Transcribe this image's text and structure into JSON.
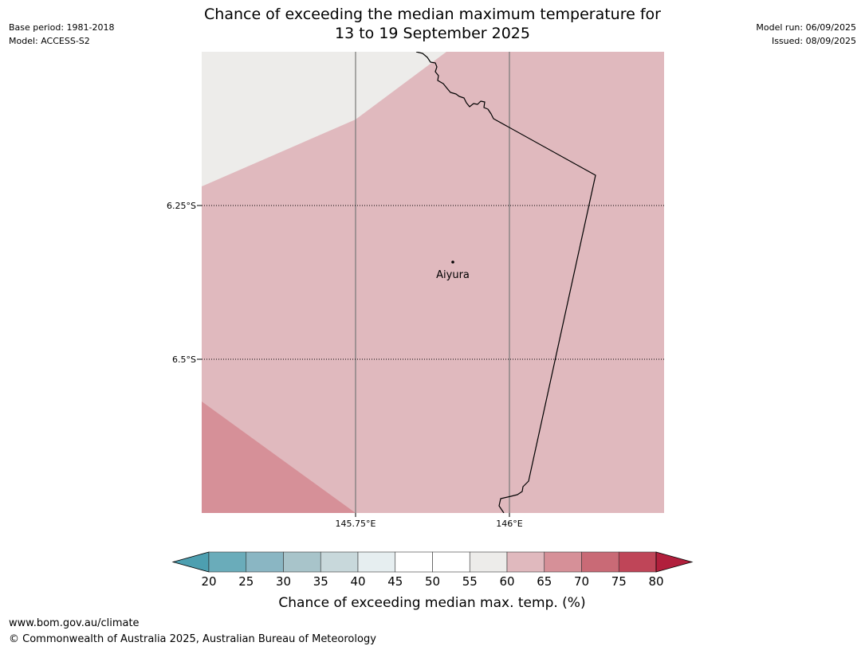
{
  "header": {
    "base_period": "Base period: 1981-2018",
    "model": "Model: ACCESS-S2",
    "model_run": "Model run: 06/09/2025",
    "issued": "Issued: 08/09/2025",
    "title_line1": "Chance of exceeding the median maximum temperature for",
    "title_line2": "13 to 19 September 2025"
  },
  "map": {
    "latitude_labels": [
      "6.25°S",
      "6.5°S"
    ],
    "longitude_labels": [
      "145.75°E",
      "146°E"
    ],
    "place": "Aiyura",
    "region_colors": {
      "55-60": "#edecea",
      "60-65": "#e0b9be",
      "65-70": "#d69098"
    }
  },
  "colorbar": {
    "ticks": [
      "20",
      "25",
      "30",
      "35",
      "40",
      "45",
      "50",
      "55",
      "60",
      "65",
      "70",
      "75",
      "80"
    ],
    "colors": [
      "#4d9fb0",
      "#6aacba",
      "#8ab6c3",
      "#a8c4ca",
      "#c8d8db",
      "#e6eef0",
      "#ffffff",
      "#ffffff",
      "#edecea",
      "#e0b9be",
      "#d69098",
      "#c96a76",
      "#bf4558",
      "#b11f3c"
    ],
    "label": "Chance of exceeding median max. temp. (%)"
  },
  "footer": {
    "url": "www.bom.gov.au/climate",
    "copyright": "© Commonwealth of Australia 2025, Australian Bureau of Meteorology"
  }
}
